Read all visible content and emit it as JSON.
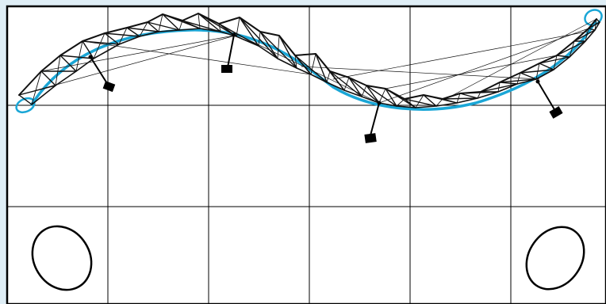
{
  "colors": {
    "background": "#dfeef6",
    "panel": "#ffffff",
    "grid": "#000000",
    "curve": "#1aa6d6",
    "truss": "#111111",
    "weights": "#000000"
  },
  "icons": {
    "endpoints": "circle-outline-icon",
    "weights": "square-weight-icon",
    "ellipses": "ellipse-outline-icon"
  },
  "counts": {
    "grid_columns": 6,
    "grid_rows": 3,
    "hanging_weights": 4,
    "ellipses": 2
  }
}
